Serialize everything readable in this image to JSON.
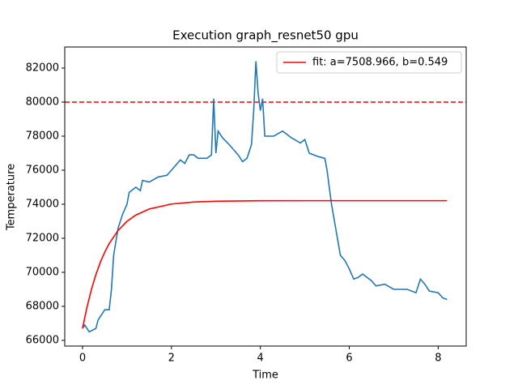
{
  "chart_data": {
    "type": "line",
    "title": "Execution graph_resnet50 gpu",
    "xlabel": "Time",
    "ylabel": "Temperature",
    "xlim": [
      -0.4,
      8.63
    ],
    "ylim": [
      65667,
      83238
    ],
    "xticks": [
      0,
      2,
      4,
      6,
      8
    ],
    "yticks": [
      66000,
      68000,
      70000,
      72000,
      74000,
      76000,
      78000,
      80000,
      82000
    ],
    "legend": "upper right",
    "hlines": [
      {
        "value": 80000,
        "color": "#ff0000",
        "style": "dashed"
      }
    ],
    "series": [
      {
        "color": "#1f77b4",
        "x": [
          0,
          0.05,
          0.1,
          0.15,
          0.3,
          0.35,
          0.45,
          0.5,
          0.6,
          0.65,
          0.7,
          0.8,
          0.9,
          1.0,
          1.05,
          1.2,
          1.3,
          1.35,
          1.5,
          1.7,
          1.9,
          2.0,
          2.2,
          2.3,
          2.4,
          2.5,
          2.6,
          2.8,
          2.9,
          2.95,
          3.0,
          3.05,
          3.15,
          3.3,
          3.5,
          3.6,
          3.7,
          3.8,
          3.85,
          3.9,
          3.95,
          4.0,
          4.05,
          4.1,
          4.3,
          4.5,
          4.7,
          4.9,
          5.0,
          5.1,
          5.3,
          5.45,
          5.5,
          5.6,
          5.7,
          5.8,
          5.9,
          6.0,
          6.1,
          6.2,
          6.3,
          6.5,
          6.6,
          6.8,
          7.0,
          7.3,
          7.5,
          7.6,
          7.7,
          7.8,
          8.0,
          8.1,
          8.2
        ],
        "values": [
          66700,
          66900,
          66700,
          66500,
          66700,
          67200,
          67600,
          67800,
          67800,
          69000,
          71000,
          72600,
          73400,
          74000,
          74700,
          75000,
          74800,
          75400,
          75300,
          75600,
          75700,
          76000,
          76600,
          76400,
          76900,
          76900,
          76700,
          76700,
          76900,
          80200,
          77000,
          78300,
          77900,
          77500,
          76900,
          76500,
          76700,
          77500,
          79500,
          82400,
          80500,
          79500,
          80200,
          78000,
          78000,
          78300,
          77900,
          77600,
          77800,
          77000,
          76800,
          76700,
          76000,
          74000,
          72500,
          71000,
          70700,
          70200,
          69600,
          69700,
          69900,
          69500,
          69200,
          69300,
          69000,
          69000,
          68800,
          69600,
          69300,
          68900,
          68800,
          68500,
          68400
        ]
      },
      {
        "name": "fit: a=7508.966, b=0.549",
        "color": "#ff0000",
        "x": [
          0,
          0.1,
          0.2,
          0.3,
          0.4,
          0.5,
          0.6,
          0.8,
          1.0,
          1.2,
          1.5,
          2.0,
          2.5,
          3,
          4,
          5,
          6,
          7,
          8.2
        ],
        "values": [
          66700,
          67950,
          68992,
          69861,
          70585,
          71189,
          71691,
          72460,
          72994,
          73365,
          73720,
          74012,
          74130,
          74177,
          74204,
          74209,
          74209,
          74209,
          74209
        ]
      }
    ]
  }
}
